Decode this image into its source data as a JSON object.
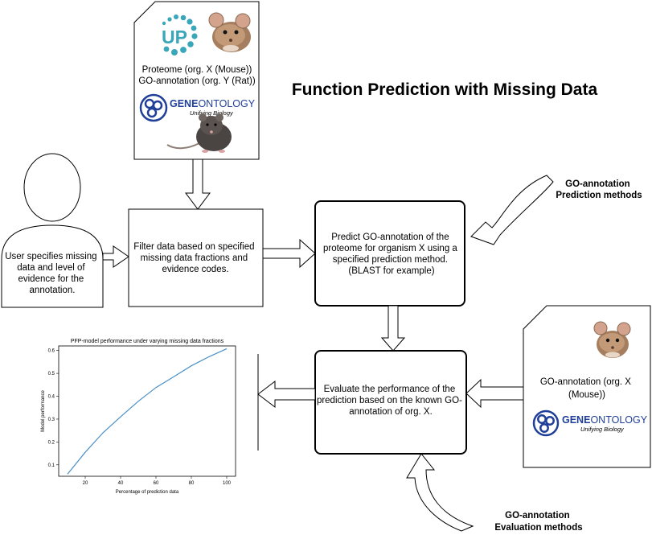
{
  "title": "Function Prediction with Missing Data",
  "source_doc": {
    "line1": "Proteome (org. X (Mouse))",
    "line2": "GO-annotation (org. Y (Rat))",
    "up_logo_text": "UP",
    "geneontology": {
      "gene": "GENE",
      "ontology": "ONTOLOGY",
      "tagline": "Unifying Biology"
    }
  },
  "user": {
    "lines": [
      "User specifies missing",
      "data and level of",
      "evidence for the",
      "annotation."
    ]
  },
  "filter": {
    "lines": [
      "Filter data based on specified",
      "missing data fractions and",
      "evidence codes."
    ]
  },
  "predict": {
    "lines": [
      "Predict GO-annotation of the",
      "proteome for organism X using a",
      "specified prediction method.",
      "(BLAST for example)"
    ]
  },
  "pred_methods": {
    "lines": [
      "GO-annotation",
      "Prediction methods"
    ]
  },
  "evaluate": {
    "lines": [
      "Evaluate the performance of the",
      "prediction based on the known GO-",
      "annotation of org. X."
    ]
  },
  "eval_doc": {
    "lines": [
      "GO-annotation (org. X",
      "(Mouse))"
    ],
    "geneontology": {
      "gene": "GENE",
      "ontology": "ONTOLOGY",
      "tagline": "Unifying Biology"
    }
  },
  "eval_methods": {
    "lines": [
      "GO-annotation",
      "Evaluation methods"
    ]
  },
  "colors": {
    "go_blue": "#1f3f99",
    "up_teal": "#3aa6b9",
    "chart_line": "#4a90c8",
    "mouse_brown": "#b58a68",
    "rat_dark": "#4a4542"
  },
  "icons": [
    "uniprot-up-logo",
    "mouse-image",
    "rat-image",
    "geneontology-logo"
  ],
  "chart_data": {
    "type": "line",
    "title": "PFP-model performance under varying missing data fractions",
    "xlabel": "Percentage of prediction data",
    "ylabel": "Model performance",
    "xlim": [
      5,
      105
    ],
    "ylim": [
      0.05,
      0.62
    ],
    "xticks": [
      20,
      40,
      60,
      80,
      100
    ],
    "yticks": [
      0.1,
      0.2,
      0.3,
      0.4,
      0.5,
      0.6
    ],
    "grid": false,
    "series": [
      {
        "x": [
          10,
          20,
          30,
          40,
          50,
          60,
          70,
          80,
          90,
          100
        ],
        "y": [
          0.06,
          0.155,
          0.24,
          0.31,
          0.378,
          0.438,
          0.485,
          0.533,
          0.573,
          0.608
        ]
      }
    ]
  }
}
